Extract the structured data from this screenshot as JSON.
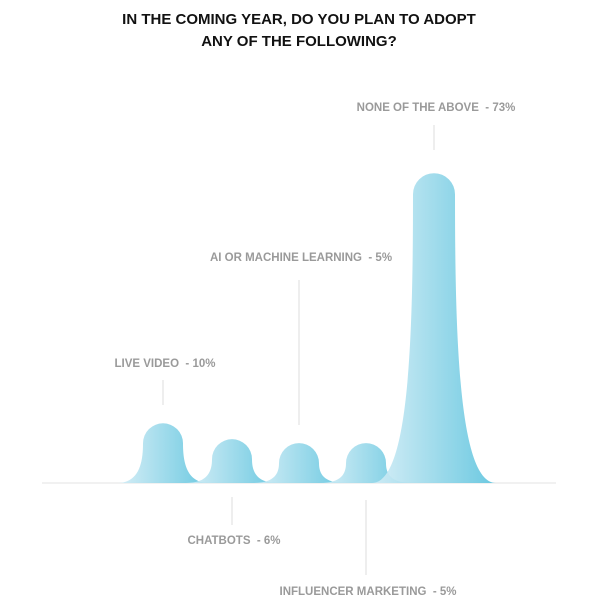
{
  "chart_data": {
    "type": "peak",
    "title": [
      "IN THE COMING YEAR, DO YOU PLAN TO ADOPT",
      "ANY OF THE FOLLOWING?"
    ],
    "categories": [
      "LIVE VIDEO",
      "CHATBOTS",
      "AI OR MACHINE LEARNING",
      "INFLUENCER MARKETING",
      "NONE OF THE ABOVE"
    ],
    "values": [
      10,
      6,
      5,
      5,
      73
    ],
    "value_labels": [
      "10%",
      "6%",
      "5%",
      "5%",
      "73%"
    ],
    "color": [
      "#d4edf6",
      "#5ec4de"
    ]
  }
}
